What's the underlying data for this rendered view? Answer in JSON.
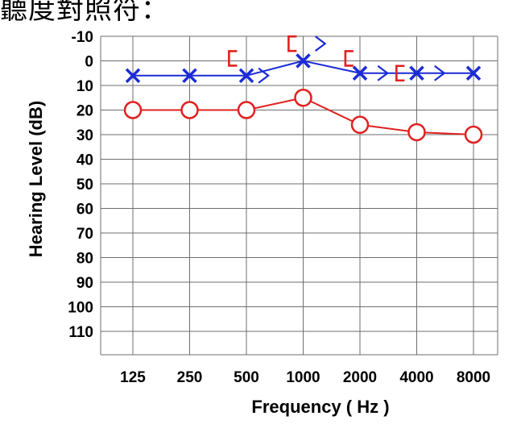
{
  "caption": "聽度對照符：",
  "chart_data": {
    "type": "line",
    "xlabel": "Frequency ( Hz )",
    "ylabel": "Hearing Level (dB)",
    "categories": [
      "125",
      "250",
      "500",
      "1000",
      "2000",
      "4000",
      "8000"
    ],
    "y_ticks": [
      "-10",
      "0",
      "10",
      "20",
      "30",
      "40",
      "50",
      "60",
      "70",
      "80",
      "90",
      "100",
      "110"
    ],
    "ylim": [
      -10,
      110
    ],
    "y_inverted": true,
    "grid": true,
    "series": [
      {
        "symbol": "X",
        "color": "#1a2bd6",
        "values": [
          6,
          6,
          6,
          0,
          5,
          5,
          5
        ]
      },
      {
        "symbol": "O",
        "color": "#e02020",
        "values": [
          20,
          20,
          20,
          15,
          26,
          29,
          30
        ]
      }
    ],
    "bone_markers": [
      {
        "symbol": ">",
        "color": "#1a2bd6",
        "x_index": 2.3,
        "value": 6
      },
      {
        "symbol": ">",
        "color": "#1a2bd6",
        "x_index": 3.3,
        "value": -7
      },
      {
        "symbol": ">",
        "color": "#1a2bd6",
        "x_index": 4.4,
        "value": 5
      },
      {
        "symbol": ">",
        "color": "#1a2bd6",
        "x_index": 5.4,
        "value": 5
      },
      {
        "symbol": "[",
        "color": "#e02020",
        "x_index": 1.75,
        "value": -1
      },
      {
        "symbol": "[",
        "color": "#e02020",
        "x_index": 2.8,
        "value": -7
      },
      {
        "symbol": "[",
        "color": "#e02020",
        "x_index": 3.8,
        "value": -1
      },
      {
        "symbol": "[",
        "color": "#e02020",
        "x_index": 4.7,
        "value": 5
      }
    ]
  }
}
